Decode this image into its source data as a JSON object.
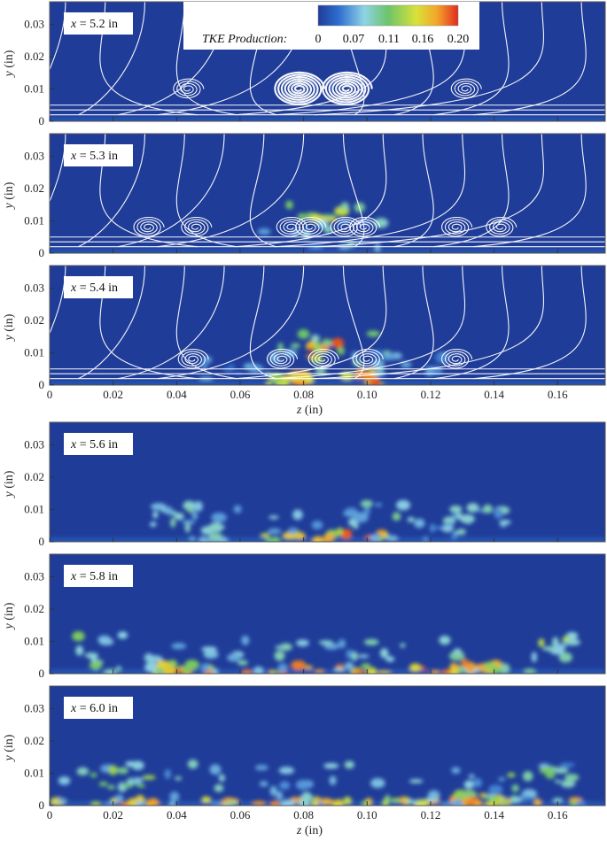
{
  "chart_data": {
    "type": "heatmap",
    "quantity": "TKE Production",
    "xlabel_var": "z",
    "xlabel_unit": " (in)",
    "ylabel_var": "y",
    "ylabel_unit": " (in)",
    "xlim": [
      0,
      0.175
    ],
    "ylim": [
      0,
      0.037
    ],
    "x_ticks": [
      "0",
      "0.02",
      "0.04",
      "0.06",
      "0.08",
      "0.10",
      "0.12",
      "0.14",
      "0.16"
    ],
    "y_ticks": [
      "0",
      "0.01",
      "0.02",
      "0.03"
    ],
    "colorbar": {
      "label": "TKE Production:",
      "ticks": [
        "0",
        "0.07",
        "0.11",
        "0.16",
        "0.20"
      ],
      "range": [
        0,
        0.2
      ],
      "colors": [
        "#1f3c98",
        "#2f6fd0",
        "#8fd3e6",
        "#6cc46a",
        "#d8e23a",
        "#f3a52a",
        "#e02b20"
      ]
    },
    "panels": [
      {
        "label": "x = 5.2 in",
        "label_var": "x",
        "label_val": " = 5.2 in",
        "x_mm": 5.2,
        "streamlines": true,
        "vortices_z": [
          0.0435,
          0.0785,
          0.0935,
          0.131
        ],
        "blobs": []
      },
      {
        "label": "x = 5.3 in",
        "label_var": "x",
        "label_val": " = 5.3 in",
        "x_mm": 5.3,
        "streamlines": true,
        "vortices_z": [
          0.031,
          0.046,
          0.076,
          0.082,
          0.093,
          0.099,
          0.128,
          0.142
        ],
        "blobs": [
          {
            "z": 0.0875,
            "y": 0.012,
            "rz": 0.012,
            "ry": 0.0035,
            "v": 0.17
          },
          {
            "z": 0.0875,
            "y": 0.0055,
            "rz": 0.02,
            "ry": 0.005,
            "v": 0.08
          }
        ]
      },
      {
        "label": "x = 5.4 in",
        "label_var": "x",
        "label_val": " = 5.4 in",
        "x_mm": 5.4,
        "streamlines": true,
        "vortices_z": [
          0.045,
          0.073,
          0.086,
          0.1,
          0.128
        ],
        "blobs": [
          {
            "z": 0.0875,
            "y": 0.009,
            "rz": 0.02,
            "ry": 0.007,
            "v": 0.1
          },
          {
            "z": 0.0875,
            "y": 0.0105,
            "rz": 0.005,
            "ry": 0.003,
            "v": 0.2
          },
          {
            "z": 0.075,
            "y": 0.002,
            "rz": 0.006,
            "ry": 0.002,
            "v": 0.2
          },
          {
            "z": 0.099,
            "y": 0.002,
            "rz": 0.006,
            "ry": 0.002,
            "v": 0.2
          },
          {
            "z": 0.06,
            "y": 0.006,
            "rz": 0.012,
            "ry": 0.004,
            "v": 0.06
          },
          {
            "z": 0.115,
            "y": 0.006,
            "rz": 0.012,
            "ry": 0.004,
            "v": 0.06
          }
        ]
      },
      {
        "label": "x = 5.6 in",
        "label_var": "x",
        "label_val": " = 5.6 in",
        "x_mm": 5.6,
        "streamlines": false,
        "blobs": [
          {
            "z": 0.0875,
            "y": 0.0015,
            "rz": 0.024,
            "ry": 0.0018,
            "v": 0.2
          },
          {
            "z": 0.0875,
            "y": 0.006,
            "rz": 0.03,
            "ry": 0.006,
            "v": 0.09
          },
          {
            "z": 0.04,
            "y": 0.0085,
            "rz": 0.009,
            "ry": 0.0035,
            "v": 0.09
          },
          {
            "z": 0.05,
            "y": 0.004,
            "rz": 0.007,
            "ry": 0.004,
            "v": 0.08
          },
          {
            "z": 0.135,
            "y": 0.0085,
            "rz": 0.009,
            "ry": 0.0035,
            "v": 0.09
          },
          {
            "z": 0.125,
            "y": 0.004,
            "rz": 0.007,
            "ry": 0.004,
            "v": 0.08
          }
        ]
      },
      {
        "label": "x = 5.8 in",
        "label_var": "x",
        "label_val": " = 5.8 in",
        "x_mm": 5.8,
        "streamlines": false,
        "blobs": [
          {
            "z": 0.0875,
            "y": 0.0012,
            "rz": 0.055,
            "ry": 0.0015,
            "v": 0.2
          },
          {
            "z": 0.0875,
            "y": 0.005,
            "rz": 0.06,
            "ry": 0.0055,
            "v": 0.09
          },
          {
            "z": 0.016,
            "y": 0.006,
            "rz": 0.007,
            "ry": 0.006,
            "v": 0.12
          },
          {
            "z": 0.158,
            "y": 0.006,
            "rz": 0.007,
            "ry": 0.006,
            "v": 0.13
          },
          {
            "z": 0.04,
            "y": 0.002,
            "rz": 0.006,
            "ry": 0.0015,
            "v": 0.2
          },
          {
            "z": 0.135,
            "y": 0.002,
            "rz": 0.006,
            "ry": 0.0015,
            "v": 0.2
          }
        ]
      },
      {
        "label": "x = 6.0 in",
        "label_var": "x",
        "label_val": " = 6.0 in",
        "x_mm": 6.0,
        "streamlines": false,
        "blobs": [
          {
            "z": 0.0875,
            "y": 0.001,
            "rz": 0.085,
            "ry": 0.0012,
            "v": 0.18
          },
          {
            "z": 0.0875,
            "y": 0.006,
            "rz": 0.085,
            "ry": 0.007,
            "v": 0.08
          },
          {
            "z": 0.02,
            "y": 0.009,
            "rz": 0.012,
            "ry": 0.004,
            "v": 0.12
          },
          {
            "z": 0.155,
            "y": 0.009,
            "rz": 0.01,
            "ry": 0.004,
            "v": 0.14
          },
          {
            "z": 0.135,
            "y": 0.003,
            "rz": 0.006,
            "ry": 0.002,
            "v": 0.19
          }
        ]
      }
    ]
  }
}
